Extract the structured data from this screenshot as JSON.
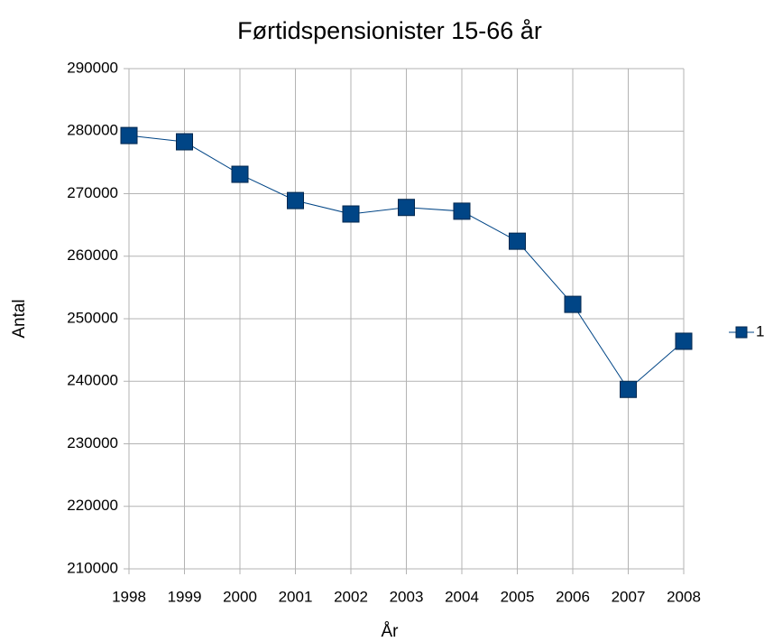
{
  "chart_data": {
    "type": "line",
    "title": "Førtidspensionister 15-66 år",
    "x_label": "År",
    "y_label": "Antal",
    "categories": [
      "1998",
      "1999",
      "2000",
      "2001",
      "2002",
      "2003",
      "2004",
      "2005",
      "2006",
      "2007",
      "2008"
    ],
    "series": [
      {
        "name": "1",
        "color": "#004586",
        "values": [
          279300,
          278300,
          273100,
          268900,
          266750,
          267800,
          267200,
          262400,
          252300,
          238700,
          246400
        ]
      }
    ],
    "ylim": [
      210000,
      290000
    ],
    "yticks": [
      210000,
      220000,
      230000,
      240000,
      250000,
      260000,
      270000,
      280000,
      290000
    ],
    "grid": true,
    "legend": "right"
  }
}
